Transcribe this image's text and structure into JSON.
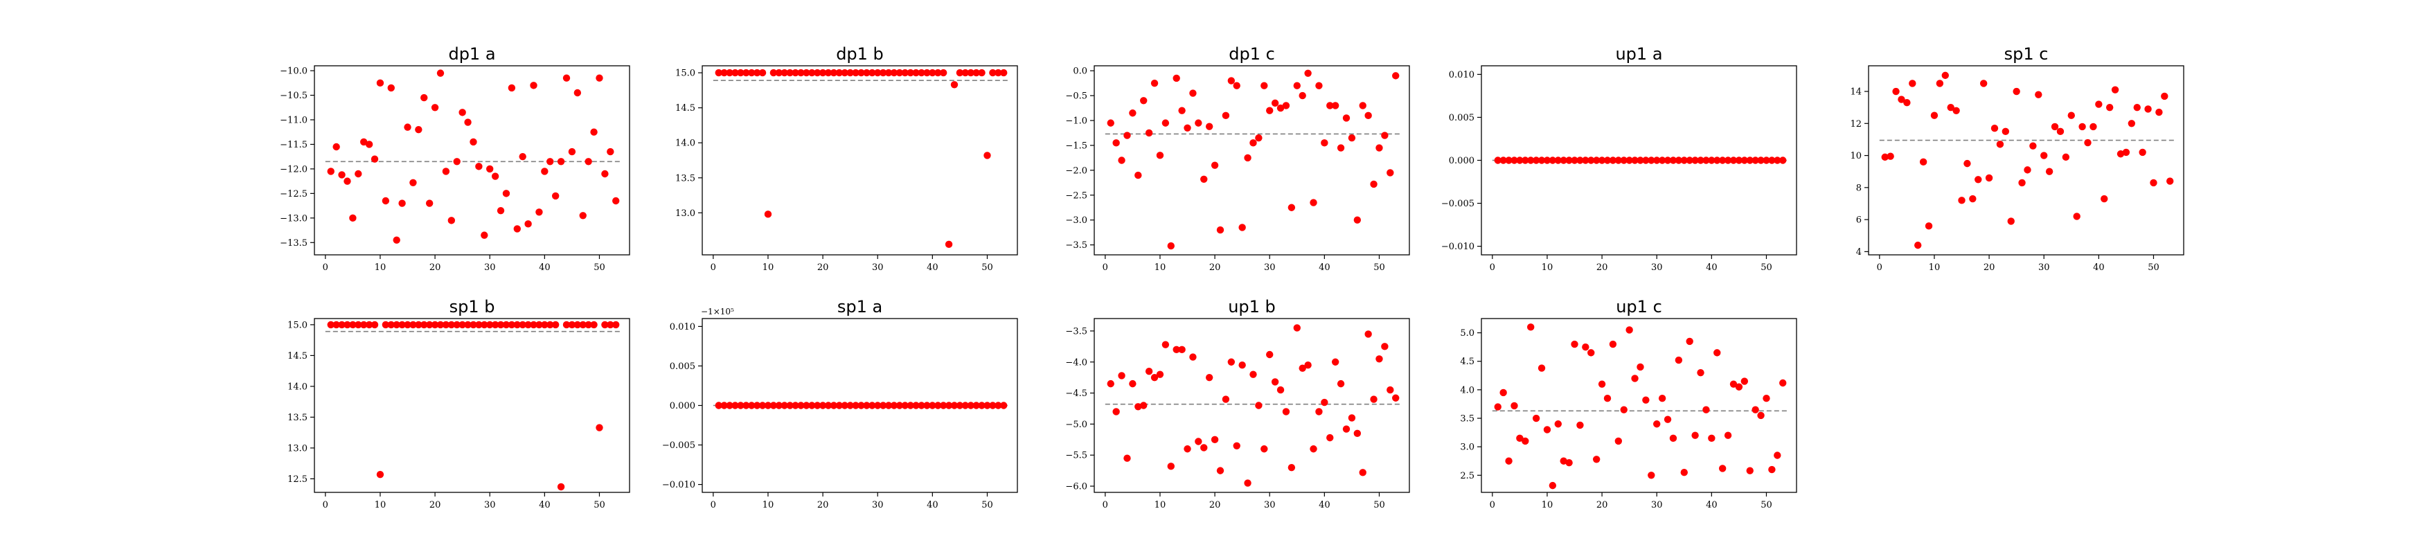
{
  "figure": {
    "background": "#ffffff",
    "marker_color": "#ff0000",
    "mean_line_color": "#808080"
  },
  "chart_data": [
    {
      "type": "scatter",
      "title": "dp1 a",
      "xlabel": "",
      "ylabel": "",
      "xlim": [
        -2,
        55.5
      ],
      "ylim": [
        -13.75,
        -9.9
      ],
      "xticks": [
        0,
        10,
        20,
        30,
        40,
        50
      ],
      "yticks": [
        -13.5,
        -13.0,
        -12.5,
        -12.0,
        -11.5,
        -11.0,
        -10.5,
        -10.0
      ],
      "ytick_labels": [
        "−13.5",
        "−13.0",
        "−12.5",
        "−12.0",
        "−11.5",
        "−11.0",
        "−10.5",
        "−10.0"
      ],
      "mean": -11.85,
      "offset_text": "",
      "x": [
        1,
        2,
        3,
        4,
        5,
        6,
        7,
        8,
        9,
        10,
        11,
        12,
        13,
        14,
        15,
        16,
        17,
        18,
        19,
        20,
        21,
        22,
        23,
        24,
        25,
        26,
        27,
        28,
        29,
        30,
        31,
        32,
        33,
        34,
        35,
        36,
        37,
        38,
        39,
        40,
        41,
        42,
        43,
        44,
        45,
        46,
        47,
        48,
        49,
        50,
        51,
        52,
        53
      ],
      "y": [
        -12.05,
        -11.55,
        -12.12,
        -12.25,
        -13.0,
        -12.1,
        -11.45,
        -11.5,
        -11.8,
        -10.25,
        -12.65,
        -10.35,
        -13.45,
        -12.7,
        -11.15,
        -12.28,
        -11.2,
        -10.55,
        -12.7,
        -10.75,
        -10.05,
        -12.05,
        -13.05,
        -11.85,
        -10.85,
        -11.05,
        -11.45,
        -11.95,
        -13.35,
        -12.0,
        -12.15,
        -12.85,
        -12.5,
        -10.35,
        -13.22,
        -11.75,
        -13.12,
        -10.3,
        -12.88,
        -12.05,
        -11.85,
        -12.55,
        -11.85,
        -10.15,
        -11.65,
        -10.45,
        -12.95,
        -11.85,
        -11.25,
        -10.15,
        -12.1,
        -11.65,
        -12.65
      ]
    },
    {
      "type": "scatter",
      "title": "dp1 b",
      "xlabel": "",
      "ylabel": "",
      "xlim": [
        -2,
        55.5
      ],
      "ylim": [
        12.4,
        15.1
      ],
      "xticks": [
        0,
        10,
        20,
        30,
        40,
        50
      ],
      "yticks": [
        13.0,
        13.5,
        14.0,
        14.5,
        15.0
      ],
      "ytick_labels": [
        "13.0",
        "13.5",
        "14.0",
        "14.5",
        "15.0"
      ],
      "mean": 14.89,
      "offset_text": "",
      "x": [
        1,
        2,
        3,
        4,
        5,
        6,
        7,
        8,
        9,
        10,
        11,
        12,
        13,
        14,
        15,
        16,
        17,
        18,
        19,
        20,
        21,
        22,
        23,
        24,
        25,
        26,
        27,
        28,
        29,
        30,
        31,
        32,
        33,
        34,
        35,
        36,
        37,
        38,
        39,
        40,
        41,
        42,
        43,
        44,
        45,
        46,
        47,
        48,
        49,
        50,
        51,
        52,
        53
      ],
      "y": [
        15,
        15,
        15,
        15,
        15,
        15,
        15,
        15,
        15,
        12.98,
        15,
        15,
        15,
        15,
        15,
        15,
        15,
        15,
        15,
        15,
        15,
        15,
        15,
        15,
        15,
        15,
        15,
        15,
        15,
        15,
        15,
        15,
        15,
        15,
        15,
        15,
        15,
        15,
        15,
        15,
        15,
        15,
        12.55,
        14.83,
        15,
        15,
        15,
        15,
        15,
        13.82,
        15,
        15,
        15
      ]
    },
    {
      "type": "scatter",
      "title": "dp1 c",
      "xlabel": "",
      "ylabel": "",
      "xlim": [
        -2,
        55.5
      ],
      "ylim": [
        -3.7,
        0.1
      ],
      "xticks": [
        0,
        10,
        20,
        30,
        40,
        50
      ],
      "yticks": [
        -3.5,
        -3.0,
        -2.5,
        -2.0,
        -1.5,
        -1.0,
        -0.5,
        0.0
      ],
      "ytick_labels": [
        "−3.5",
        "−3.0",
        "−2.5",
        "−2.0",
        "−1.5",
        "−1.0",
        "−0.5",
        "0.0"
      ],
      "mean": -1.27,
      "offset_text": "",
      "x": [
        1,
        2,
        3,
        4,
        5,
        6,
        7,
        8,
        9,
        10,
        11,
        12,
        13,
        14,
        15,
        16,
        17,
        18,
        19,
        20,
        21,
        22,
        23,
        24,
        25,
        26,
        27,
        28,
        29,
        30,
        31,
        32,
        33,
        34,
        35,
        36,
        37,
        38,
        39,
        40,
        41,
        42,
        43,
        44,
        45,
        46,
        47,
        48,
        49,
        50,
        51,
        52,
        53
      ],
      "y": [
        -1.05,
        -1.45,
        -1.8,
        -1.3,
        -0.85,
        -2.1,
        -0.6,
        -1.25,
        -0.25,
        -1.7,
        -1.05,
        -3.52,
        -0.15,
        -0.8,
        -1.15,
        -0.45,
        -1.05,
        -2.18,
        -1.12,
        -1.9,
        -3.2,
        -0.9,
        -0.2,
        -0.3,
        -3.15,
        -1.75,
        -1.45,
        -1.35,
        -0.3,
        -0.8,
        -0.65,
        -0.75,
        -0.7,
        -2.75,
        -0.3,
        -0.5,
        -0.05,
        -2.65,
        -0.3,
        -1.45,
        -0.7,
        -0.7,
        -1.55,
        -0.95,
        -1.35,
        -3.0,
        -0.7,
        -0.9,
        -2.28,
        -1.55,
        -1.3,
        -2.05,
        -0.1
      ]
    },
    {
      "type": "scatter",
      "title": "up1 a",
      "xlabel": "",
      "ylabel": "",
      "xlim": [
        -2,
        55.5
      ],
      "ylim": [
        -0.011,
        0.011
      ],
      "xticks": [
        0,
        10,
        20,
        30,
        40,
        50
      ],
      "yticks": [
        -0.01,
        -0.005,
        0.0,
        0.005,
        0.01
      ],
      "ytick_labels": [
        "−0.010",
        "−0.005",
        "0.000",
        "0.005",
        "0.010"
      ],
      "mean": 0.0,
      "offset_text": "",
      "x": [
        1,
        2,
        3,
        4,
        5,
        6,
        7,
        8,
        9,
        10,
        11,
        12,
        13,
        14,
        15,
        16,
        17,
        18,
        19,
        20,
        21,
        22,
        23,
        24,
        25,
        26,
        27,
        28,
        29,
        30,
        31,
        32,
        33,
        34,
        35,
        36,
        37,
        38,
        39,
        40,
        41,
        42,
        43,
        44,
        45,
        46,
        47,
        48,
        49,
        50,
        51,
        52,
        53
      ],
      "y": [
        0,
        0,
        0,
        0,
        0,
        0,
        0,
        0,
        0,
        0,
        0,
        0,
        0,
        0,
        0,
        0,
        0,
        0,
        0,
        0,
        0,
        0,
        0,
        0,
        0,
        0,
        0,
        0,
        0,
        0,
        0,
        0,
        0,
        0,
        0,
        0,
        0,
        0,
        0,
        0,
        0,
        0,
        0,
        0,
        0,
        0,
        0,
        0,
        0,
        0,
        0,
        0,
        0
      ]
    },
    {
      "type": "scatter",
      "title": "sp1 c",
      "xlabel": "",
      "ylabel": "",
      "xlim": [
        -2,
        55.5
      ],
      "ylim": [
        3.8,
        15.6
      ],
      "xticks": [
        0,
        10,
        20,
        30,
        40,
        50
      ],
      "yticks": [
        4,
        6,
        8,
        10,
        12,
        14
      ],
      "ytick_labels": [
        "4",
        "6",
        "8",
        "10",
        "12",
        "14"
      ],
      "mean": 10.95,
      "offset_text": "",
      "x": [
        1,
        2,
        3,
        4,
        5,
        6,
        7,
        8,
        9,
        10,
        11,
        12,
        13,
        14,
        15,
        16,
        17,
        18,
        19,
        20,
        21,
        22,
        23,
        24,
        25,
        26,
        27,
        28,
        29,
        30,
        31,
        32,
        33,
        34,
        35,
        36,
        37,
        38,
        39,
        40,
        41,
        42,
        43,
        44,
        45,
        46,
        47,
        48,
        49,
        50,
        51,
        52,
        53
      ],
      "y": [
        9.9,
        9.95,
        14.0,
        13.5,
        13.3,
        14.5,
        4.4,
        9.6,
        5.6,
        12.5,
        14.5,
        15.0,
        13.0,
        12.8,
        7.2,
        9.5,
        7.3,
        8.5,
        14.5,
        8.6,
        11.7,
        10.7,
        11.5,
        5.9,
        14.0,
        8.3,
        9.1,
        10.6,
        13.8,
        10.0,
        9.0,
        11.8,
        11.5,
        9.9,
        12.5,
        6.2,
        11.8,
        10.8,
        11.8,
        13.2,
        7.3,
        13.0,
        14.1,
        10.1,
        10.2,
        12.0,
        13.0,
        10.2,
        12.9,
        8.3,
        12.7,
        13.7,
        8.4
      ]
    },
    {
      "type": "scatter",
      "title": "sp1 b",
      "xlabel": "",
      "ylabel": "",
      "xlim": [
        -2,
        55.5
      ],
      "ylim": [
        12.28,
        15.1
      ],
      "xticks": [
        0,
        10,
        20,
        30,
        40,
        50
      ],
      "yticks": [
        12.5,
        13.0,
        13.5,
        14.0,
        14.5,
        15.0
      ],
      "ytick_labels": [
        "12.5",
        "13.0",
        "13.5",
        "14.0",
        "14.5",
        "15.0"
      ],
      "mean": 14.89,
      "offset_text": "",
      "x": [
        1,
        2,
        3,
        4,
        5,
        6,
        7,
        8,
        9,
        10,
        11,
        12,
        13,
        14,
        15,
        16,
        17,
        18,
        19,
        20,
        21,
        22,
        23,
        24,
        25,
        26,
        27,
        28,
        29,
        30,
        31,
        32,
        33,
        34,
        35,
        36,
        37,
        38,
        39,
        40,
        41,
        42,
        43,
        44,
        45,
        46,
        47,
        48,
        49,
        50,
        51,
        52,
        53
      ],
      "y": [
        15,
        15,
        15,
        15,
        15,
        15,
        15,
        15,
        15,
        12.57,
        15,
        15,
        15,
        15,
        15,
        15,
        15,
        15,
        15,
        15,
        15,
        15,
        15,
        15,
        15,
        15,
        15,
        15,
        15,
        15,
        15,
        15,
        15,
        15,
        15,
        15,
        15,
        15,
        15,
        15,
        15,
        15,
        12.37,
        15,
        15,
        15,
        15,
        15,
        15,
        13.33,
        15,
        15,
        15
      ]
    },
    {
      "type": "scatter",
      "title": "sp1 a",
      "xlabel": "",
      "ylabel": "",
      "xlim": [
        -2,
        55.5
      ],
      "ylim": [
        -0.011,
        0.011
      ],
      "xticks": [
        0,
        10,
        20,
        30,
        40,
        50
      ],
      "yticks": [
        -0.01,
        -0.005,
        0.0,
        0.005,
        0.01
      ],
      "ytick_labels": [
        "−0.010",
        "−0.005",
        "0.000",
        "0.005",
        "0.010"
      ],
      "mean": 0.0,
      "offset_text": "−1×10⁵",
      "x": [
        1,
        2,
        3,
        4,
        5,
        6,
        7,
        8,
        9,
        10,
        11,
        12,
        13,
        14,
        15,
        16,
        17,
        18,
        19,
        20,
        21,
        22,
        23,
        24,
        25,
        26,
        27,
        28,
        29,
        30,
        31,
        32,
        33,
        34,
        35,
        36,
        37,
        38,
        39,
        40,
        41,
        42,
        43,
        44,
        45,
        46,
        47,
        48,
        49,
        50,
        51,
        52,
        53
      ],
      "y": [
        0,
        0,
        0,
        0,
        0,
        0,
        0,
        0,
        0,
        0,
        0,
        0,
        0,
        0,
        0,
        0,
        0,
        0,
        0,
        0,
        0,
        0,
        0,
        0,
        0,
        0,
        0,
        0,
        0,
        0,
        0,
        0,
        0,
        0,
        0,
        0,
        0,
        0,
        0,
        0,
        0,
        0,
        0,
        0,
        0,
        0,
        0,
        0,
        0,
        0,
        0,
        0,
        0
      ]
    },
    {
      "type": "scatter",
      "title": "up1 b",
      "xlabel": "",
      "ylabel": "",
      "xlim": [
        -2,
        55.5
      ],
      "ylim": [
        -6.1,
        -3.3
      ],
      "xticks": [
        0,
        10,
        20,
        30,
        40,
        50
      ],
      "yticks": [
        -6.0,
        -5.5,
        -5.0,
        -4.5,
        -4.0,
        -3.5
      ],
      "ytick_labels": [
        "−6.0",
        "−5.5",
        "−5.0",
        "−4.5",
        "−4.0",
        "−3.5"
      ],
      "mean": -4.68,
      "offset_text": "",
      "x": [
        1,
        2,
        3,
        4,
        5,
        6,
        7,
        8,
        9,
        10,
        11,
        12,
        13,
        14,
        15,
        16,
        17,
        18,
        19,
        20,
        21,
        22,
        23,
        24,
        25,
        26,
        27,
        28,
        29,
        30,
        31,
        32,
        33,
        34,
        35,
        36,
        37,
        38,
        39,
        40,
        41,
        42,
        43,
        44,
        45,
        46,
        47,
        48,
        49,
        50,
        51,
        52,
        53
      ],
      "y": [
        -4.35,
        -4.8,
        -4.22,
        -5.55,
        -4.35,
        -4.72,
        -4.7,
        -4.15,
        -4.25,
        -4.2,
        -3.72,
        -5.68,
        -3.8,
        -3.8,
        -5.4,
        -3.92,
        -5.28,
        -5.38,
        -4.25,
        -5.25,
        -5.75,
        -4.6,
        -4.0,
        -5.35,
        -4.05,
        -5.95,
        -4.2,
        -4.7,
        -5.4,
        -3.88,
        -4.32,
        -4.45,
        -4.8,
        -5.7,
        -3.45,
        -4.1,
        -4.05,
        -5.4,
        -4.8,
        -4.65,
        -5.22,
        -4.0,
        -4.35,
        -5.08,
        -4.9,
        -5.15,
        -5.78,
        -3.55,
        -4.6,
        -3.95,
        -3.75,
        -4.45,
        -4.58
      ]
    },
    {
      "type": "scatter",
      "title": "up1 c",
      "xlabel": "",
      "ylabel": "",
      "xlim": [
        -2,
        55.5
      ],
      "ylim": [
        2.2,
        5.25
      ],
      "xticks": [
        0,
        10,
        20,
        30,
        40,
        50
      ],
      "yticks": [
        2.5,
        3.0,
        3.5,
        4.0,
        4.5,
        5.0
      ],
      "ytick_labels": [
        "2.5",
        "3.0",
        "3.5",
        "4.0",
        "4.5",
        "5.0"
      ],
      "mean": 3.63,
      "offset_text": "",
      "x": [
        1,
        2,
        3,
        4,
        5,
        6,
        7,
        8,
        9,
        10,
        11,
        12,
        13,
        14,
        15,
        16,
        17,
        18,
        19,
        20,
        21,
        22,
        23,
        24,
        25,
        26,
        27,
        28,
        29,
        30,
        31,
        32,
        33,
        34,
        35,
        36,
        37,
        38,
        39,
        40,
        41,
        42,
        43,
        44,
        45,
        46,
        47,
        48,
        49,
        50,
        51,
        52,
        53
      ],
      "y": [
        3.7,
        3.95,
        2.75,
        3.72,
        3.15,
        3.1,
        5.1,
        3.5,
        4.38,
        3.3,
        2.32,
        3.4,
        2.75,
        2.72,
        4.8,
        3.38,
        4.75,
        4.65,
        2.78,
        4.1,
        3.85,
        4.8,
        3.1,
        3.65,
        5.05,
        4.2,
        4.4,
        3.82,
        2.5,
        3.4,
        3.85,
        3.48,
        3.15,
        4.52,
        2.55,
        4.85,
        3.2,
        4.3,
        3.65,
        3.15,
        4.65,
        2.62,
        3.2,
        4.1,
        4.05,
        4.15,
        2.58,
        3.65,
        3.55,
        3.85,
        2.6,
        2.85,
        4.12
      ]
    }
  ]
}
